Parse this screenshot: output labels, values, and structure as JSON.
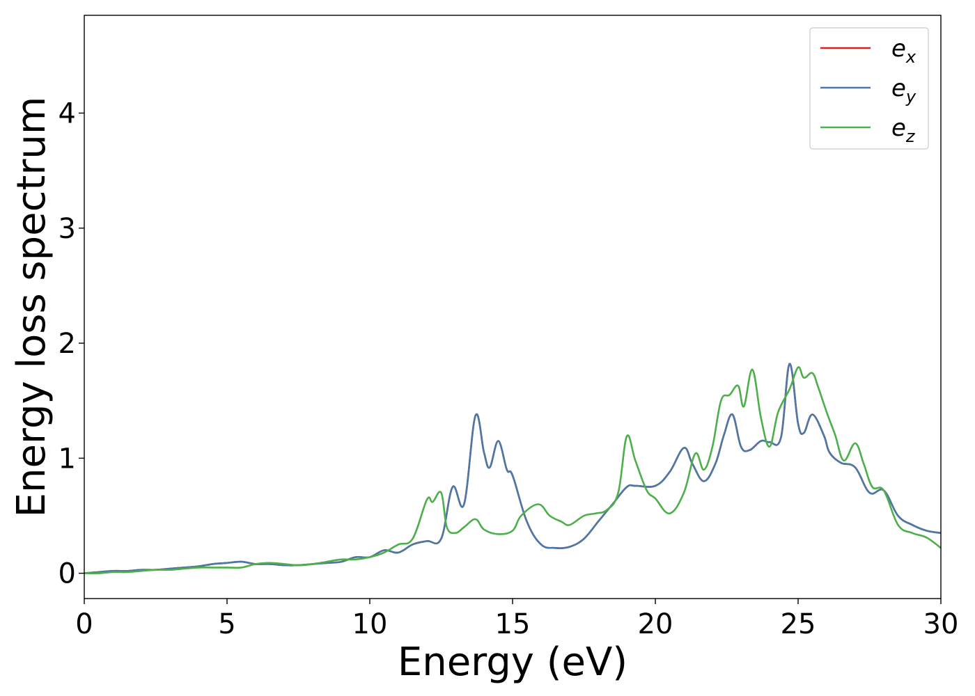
{
  "chart_data": {
    "type": "line",
    "title": "",
    "xlabel": "Energy (eV)",
    "ylabel": "Energy loss spectrum",
    "xlim": [
      0,
      30
    ],
    "ylim": [
      -0.22,
      4.85
    ],
    "xticks": [
      "0",
      "5",
      "10",
      "15",
      "20",
      "25",
      "30"
    ],
    "yticks": [
      "0",
      "1",
      "2",
      "3",
      "4"
    ],
    "grid": false,
    "legend_position": "top-right",
    "series": [
      {
        "name": "e_x",
        "label_main": "e",
        "label_sub": "x",
        "color": "#e41a1c",
        "x": [
          0,
          0.5,
          1,
          1.5,
          2,
          2.5,
          3,
          3.5,
          4,
          4.5,
          5,
          5.5,
          6,
          6.5,
          7,
          7.5,
          8,
          8.5,
          9,
          9.5,
          10,
          10.5,
          11,
          11.5,
          12,
          12.5,
          12.9,
          13.3,
          13.7,
          14.0,
          14.2,
          14.5,
          14.8,
          15.0,
          15.5,
          16.0,
          16.5,
          17.0,
          17.5,
          18.0,
          18.5,
          19.0,
          19.3,
          20.0,
          20.5,
          21.0,
          21.3,
          21.7,
          22.1,
          22.4,
          22.7,
          23.0,
          23.3,
          23.7,
          24.0,
          24.4,
          24.7,
          25.0,
          25.2,
          25.5,
          25.9,
          26.1,
          26.5,
          27.0,
          27.5,
          28.0,
          28.5,
          29.0,
          29.5,
          30.0
        ],
        "values": [
          0.0,
          0.01,
          0.02,
          0.02,
          0.03,
          0.03,
          0.04,
          0.05,
          0.06,
          0.08,
          0.09,
          0.1,
          0.08,
          0.08,
          0.07,
          0.07,
          0.08,
          0.09,
          0.1,
          0.14,
          0.14,
          0.2,
          0.18,
          0.25,
          0.28,
          0.3,
          0.75,
          0.6,
          1.37,
          1.05,
          0.92,
          1.15,
          0.9,
          0.85,
          0.45,
          0.25,
          0.22,
          0.23,
          0.3,
          0.45,
          0.6,
          0.75,
          0.76,
          0.76,
          0.88,
          1.09,
          0.95,
          0.8,
          0.95,
          1.2,
          1.38,
          1.1,
          1.07,
          1.15,
          1.14,
          1.18,
          1.82,
          1.3,
          1.22,
          1.38,
          1.2,
          1.05,
          0.96,
          0.92,
          0.7,
          0.72,
          0.5,
          0.42,
          0.37,
          0.35
        ]
      },
      {
        "name": "e_y",
        "label_main": "e",
        "label_sub": "y",
        "color": "#4a79a8",
        "x": [
          0,
          0.5,
          1,
          1.5,
          2,
          2.5,
          3,
          3.5,
          4,
          4.5,
          5,
          5.5,
          6,
          6.5,
          7,
          7.5,
          8,
          8.5,
          9,
          9.5,
          10,
          10.5,
          11,
          11.5,
          12,
          12.5,
          12.9,
          13.3,
          13.7,
          14.0,
          14.2,
          14.5,
          14.8,
          15.0,
          15.5,
          16.0,
          16.5,
          17.0,
          17.5,
          18.0,
          18.5,
          19.0,
          19.3,
          20.0,
          20.5,
          21.0,
          21.3,
          21.7,
          22.1,
          22.4,
          22.7,
          23.0,
          23.3,
          23.7,
          24.0,
          24.4,
          24.7,
          25.0,
          25.2,
          25.5,
          25.9,
          26.1,
          26.5,
          27.0,
          27.5,
          28.0,
          28.5,
          29.0,
          29.5,
          30.0
        ],
        "values": [
          0.0,
          0.01,
          0.02,
          0.02,
          0.03,
          0.03,
          0.04,
          0.05,
          0.06,
          0.08,
          0.09,
          0.1,
          0.08,
          0.08,
          0.07,
          0.07,
          0.08,
          0.09,
          0.1,
          0.14,
          0.14,
          0.2,
          0.18,
          0.25,
          0.28,
          0.3,
          0.75,
          0.6,
          1.37,
          1.05,
          0.92,
          1.15,
          0.9,
          0.85,
          0.45,
          0.25,
          0.22,
          0.23,
          0.3,
          0.45,
          0.6,
          0.75,
          0.76,
          0.76,
          0.88,
          1.09,
          0.95,
          0.8,
          0.95,
          1.2,
          1.38,
          1.1,
          1.07,
          1.15,
          1.14,
          1.18,
          1.82,
          1.3,
          1.22,
          1.38,
          1.2,
          1.05,
          0.96,
          0.92,
          0.7,
          0.72,
          0.5,
          0.42,
          0.37,
          0.35
        ]
      },
      {
        "name": "e_z",
        "label_main": "e",
        "label_sub": "z",
        "color": "#4daf4a",
        "x": [
          0,
          0.5,
          1,
          1.5,
          2,
          2.5,
          3,
          3.5,
          4,
          4.5,
          5,
          5.5,
          6,
          6.5,
          7,
          7.5,
          8,
          8.5,
          9,
          9.5,
          10,
          10.5,
          11,
          11.5,
          12,
          12.2,
          12.5,
          12.7,
          13.0,
          13.3,
          13.7,
          14.0,
          14.5,
          15.0,
          15.3,
          15.9,
          16.3,
          16.7,
          17.0,
          17.5,
          17.9,
          18.3,
          18.7,
          19.0,
          19.3,
          19.7,
          20.0,
          20.5,
          21.0,
          21.4,
          21.7,
          22.0,
          22.3,
          22.6,
          22.9,
          23.1,
          23.4,
          23.7,
          24.0,
          24.3,
          24.7,
          25.0,
          25.2,
          25.5,
          25.7,
          26.0,
          26.3,
          26.6,
          27.0,
          27.3,
          27.6,
          28.0,
          28.5,
          29.0,
          29.5,
          30.0
        ],
        "values": [
          0.0,
          0.0,
          0.01,
          0.01,
          0.02,
          0.03,
          0.03,
          0.04,
          0.05,
          0.05,
          0.05,
          0.05,
          0.08,
          0.09,
          0.08,
          0.07,
          0.08,
          0.1,
          0.12,
          0.12,
          0.14,
          0.18,
          0.25,
          0.3,
          0.64,
          0.62,
          0.7,
          0.4,
          0.35,
          0.4,
          0.47,
          0.38,
          0.34,
          0.37,
          0.5,
          0.6,
          0.5,
          0.45,
          0.42,
          0.5,
          0.52,
          0.55,
          0.7,
          1.19,
          0.98,
          0.72,
          0.65,
          0.52,
          0.7,
          1.04,
          0.9,
          1.1,
          1.5,
          1.55,
          1.63,
          1.45,
          1.77,
          1.35,
          1.1,
          1.4,
          1.6,
          1.79,
          1.7,
          1.74,
          1.62,
          1.4,
          1.2,
          0.98,
          1.13,
          0.95,
          0.75,
          0.72,
          0.42,
          0.35,
          0.31,
          0.22
        ]
      }
    ]
  }
}
